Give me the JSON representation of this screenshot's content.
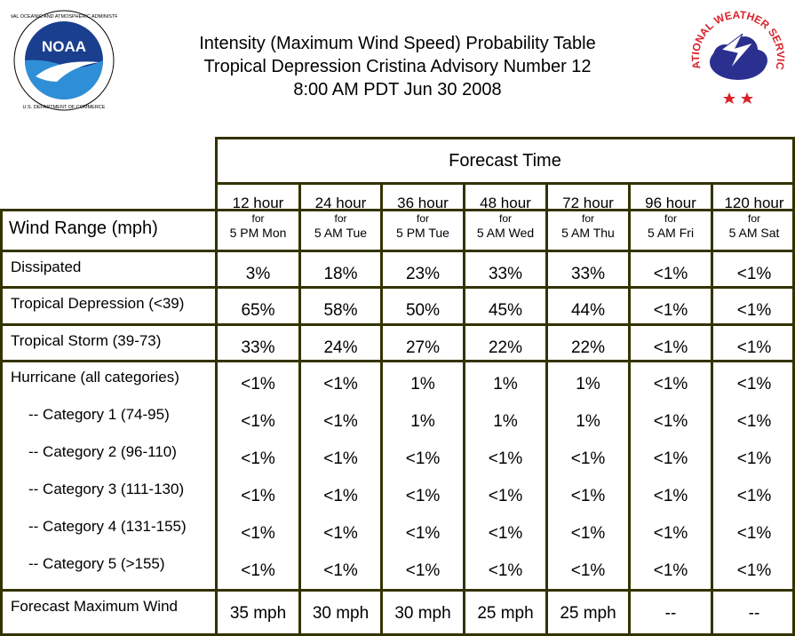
{
  "header": {
    "title_line1": "Intensity (Maximum Wind Speed) Probability Table",
    "title_line2": "Tropical Depression Cristina Advisory Number 12",
    "title_line3": "8:00 AM PDT Jun 30 2008"
  },
  "logos": {
    "noaa": {
      "text": "NOAA",
      "ring_text": "NATIONAL OCEANIC AND ATMOSPHERIC ADMINISTRATION · U.S. DEPARTMENT OF COMMERCE",
      "icon": "noaa-logo"
    },
    "nws": {
      "ring_text": "NATIONAL WEATHER SERVICE",
      "icon": "nws-logo"
    }
  },
  "table": {
    "forecast_time_label": "Forecast Time",
    "wind_range_label": "Wind Range (mph)",
    "for_label": "for",
    "columns": [
      {
        "hour": "12 hour",
        "date": "5 PM Mon"
      },
      {
        "hour": "24 hour",
        "date": "5 AM Tue"
      },
      {
        "hour": "36 hour",
        "date": "5 PM Tue"
      },
      {
        "hour": "48 hour",
        "date": "5 AM Wed"
      },
      {
        "hour": "72 hour",
        "date": "5 AM Thu"
      },
      {
        "hour": "96 hour",
        "date": "5 AM Fri"
      },
      {
        "hour": "120 hour",
        "date": "5 AM Sat"
      }
    ],
    "rows": [
      {
        "label": "Dissipated",
        "values": [
          "3%",
          "18%",
          "23%",
          "33%",
          "33%",
          "<1%",
          "<1%"
        ]
      },
      {
        "label": "Tropical Depression (<39)",
        "values": [
          "65%",
          "58%",
          "50%",
          "45%",
          "44%",
          "<1%",
          "<1%"
        ]
      },
      {
        "label": "Tropical Storm (39-73)",
        "values": [
          "33%",
          "24%",
          "27%",
          "22%",
          "22%",
          "<1%",
          "<1%"
        ]
      },
      {
        "label": "Hurricane (all categories)",
        "values": [
          "<1%",
          "<1%",
          "1%",
          "1%",
          "1%",
          "<1%",
          "<1%"
        ]
      },
      {
        "label": "-- Category 1 (74-95)",
        "values": [
          "<1%",
          "<1%",
          "1%",
          "1%",
          "1%",
          "<1%",
          "<1%"
        ]
      },
      {
        "label": "-- Category 2 (96-110)",
        "values": [
          "<1%",
          "<1%",
          "<1%",
          "<1%",
          "<1%",
          "<1%",
          "<1%"
        ]
      },
      {
        "label": "-- Category 3 (111-130)",
        "values": [
          "<1%",
          "<1%",
          "<1%",
          "<1%",
          "<1%",
          "<1%",
          "<1%"
        ]
      },
      {
        "label": "-- Category 4 (131-155)",
        "values": [
          "<1%",
          "<1%",
          "<1%",
          "<1%",
          "<1%",
          "<1%",
          "<1%"
        ]
      },
      {
        "label": "-- Category 5 (>155)",
        "values": [
          "<1%",
          "<1%",
          "<1%",
          "<1%",
          "<1%",
          "<1%",
          "<1%"
        ]
      },
      {
        "label": "Forecast Maximum Wind",
        "values": [
          "35 mph",
          "30 mph",
          "30 mph",
          "25 mph",
          "25 mph",
          "--",
          "--"
        ]
      }
    ]
  },
  "colors": {
    "border": "#333300",
    "noaa_blue": "#1a3f8f",
    "nws_red": "#d8232a"
  }
}
